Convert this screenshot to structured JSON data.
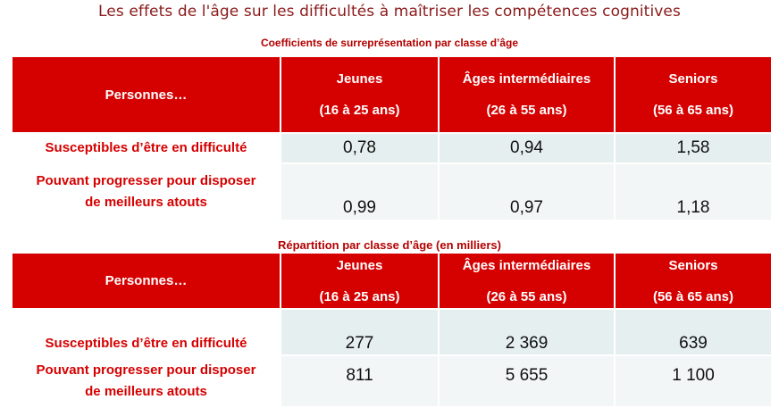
{
  "title": "Les effets de l'âge sur les difficultés à maîtriser les compétences cognitives",
  "tables": [
    {
      "subtitle": "Coefficients de surreprésentation par classe d’âge",
      "header": {
        "row_label": "Personnes…",
        "columns": [
          {
            "name": "Jeunes",
            "range": "(16 à 25 ans)"
          },
          {
            "name": "Âges intermédiaires",
            "range": "(26 à 55 ans)"
          },
          {
            "name": "Seniors",
            "range": "(56 à 65 ans)"
          }
        ]
      },
      "rows": [
        {
          "label": "Susceptibles  d’être en difficulté",
          "values": [
            "0,78",
            "0,94",
            "1,58"
          ]
        },
        {
          "label_line1": "Pouvant  progresser  pour disposer",
          "label_line2": "de meilleurs  atouts",
          "values": [
            "0,99",
            "0,97",
            "1,18"
          ]
        }
      ]
    },
    {
      "subtitle": "Répartition  par classe d’âge (en milliers)",
      "header": {
        "row_label": "Personnes…",
        "columns": [
          {
            "name": "Jeunes",
            "range": "(16 à 25 ans)"
          },
          {
            "name": "Âges intermédiaires",
            "range": "(26 à 55 ans)"
          },
          {
            "name": "Seniors",
            "range": "(56 à 65 ans)"
          }
        ]
      },
      "rows": [
        {
          "label": "Susceptibles  d’être en difficulté",
          "values": [
            "277",
            "2 369",
            "639"
          ]
        },
        {
          "label_line1": "Pouvant  progresser  pour disposer",
          "label_line2": "de meilleurs  atouts",
          "values": [
            "811",
            "5 655",
            "1 100"
          ]
        }
      ]
    }
  ]
}
